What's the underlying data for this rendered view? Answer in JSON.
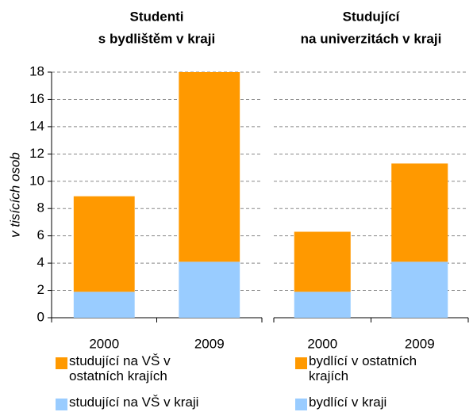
{
  "chart_data": [
    {
      "type": "bar",
      "stacked": true,
      "title": [
        "Studenti",
        "s bydlištěm v kraji"
      ],
      "y_label": "v tisících osob",
      "categories": [
        "2000",
        "2009"
      ],
      "series": [
        {
          "name": "studující na VŠ v kraji",
          "color": "#99ccff",
          "values": [
            1.9,
            4.1
          ]
        },
        {
          "name": "studující na VŠ v ostatních krajích",
          "color": "#ff9900",
          "values": [
            7.0,
            13.9
          ]
        }
      ],
      "ylim": [
        0,
        18
      ],
      "yticks": [
        0,
        2,
        4,
        6,
        8,
        10,
        12,
        14,
        16,
        18
      ],
      "grid": true
    },
    {
      "type": "bar",
      "stacked": true,
      "title": [
        "Studující",
        "na univerzitách v kraji"
      ],
      "categories": [
        "2000",
        "2009"
      ],
      "series": [
        {
          "name": "bydlící v kraji",
          "color": "#99ccff",
          "values": [
            1.9,
            4.1
          ]
        },
        {
          "name": "bydlící v ostatních krajích",
          "color": "#ff9900",
          "values": [
            4.4,
            7.2
          ]
        }
      ],
      "ylim": [
        0,
        18
      ],
      "grid": true
    }
  ]
}
